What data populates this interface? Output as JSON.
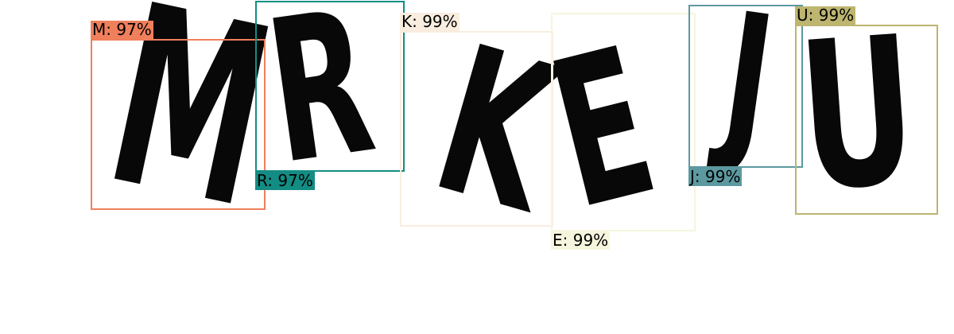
{
  "detections": [
    {
      "letter": "M",
      "label": "M: 97%",
      "confidence": 0.97,
      "color": "#F07F5B"
    },
    {
      "letter": "R",
      "label": "R: 97%",
      "confidence": 0.97,
      "color": "#138D84"
    },
    {
      "letter": "K",
      "label": "K: 99%",
      "confidence": 0.99,
      "color": "#F9EDDF"
    },
    {
      "letter": "E",
      "label": "E: 99%",
      "confidence": 0.99,
      "color": "#F6F6DE"
    },
    {
      "letter": "J",
      "label": "J: 99%",
      "confidence": 0.99,
      "color": "#5C99A0"
    },
    {
      "letter": "U",
      "label": "U: 99%",
      "confidence": 0.99,
      "color": "#BDB570"
    }
  ]
}
